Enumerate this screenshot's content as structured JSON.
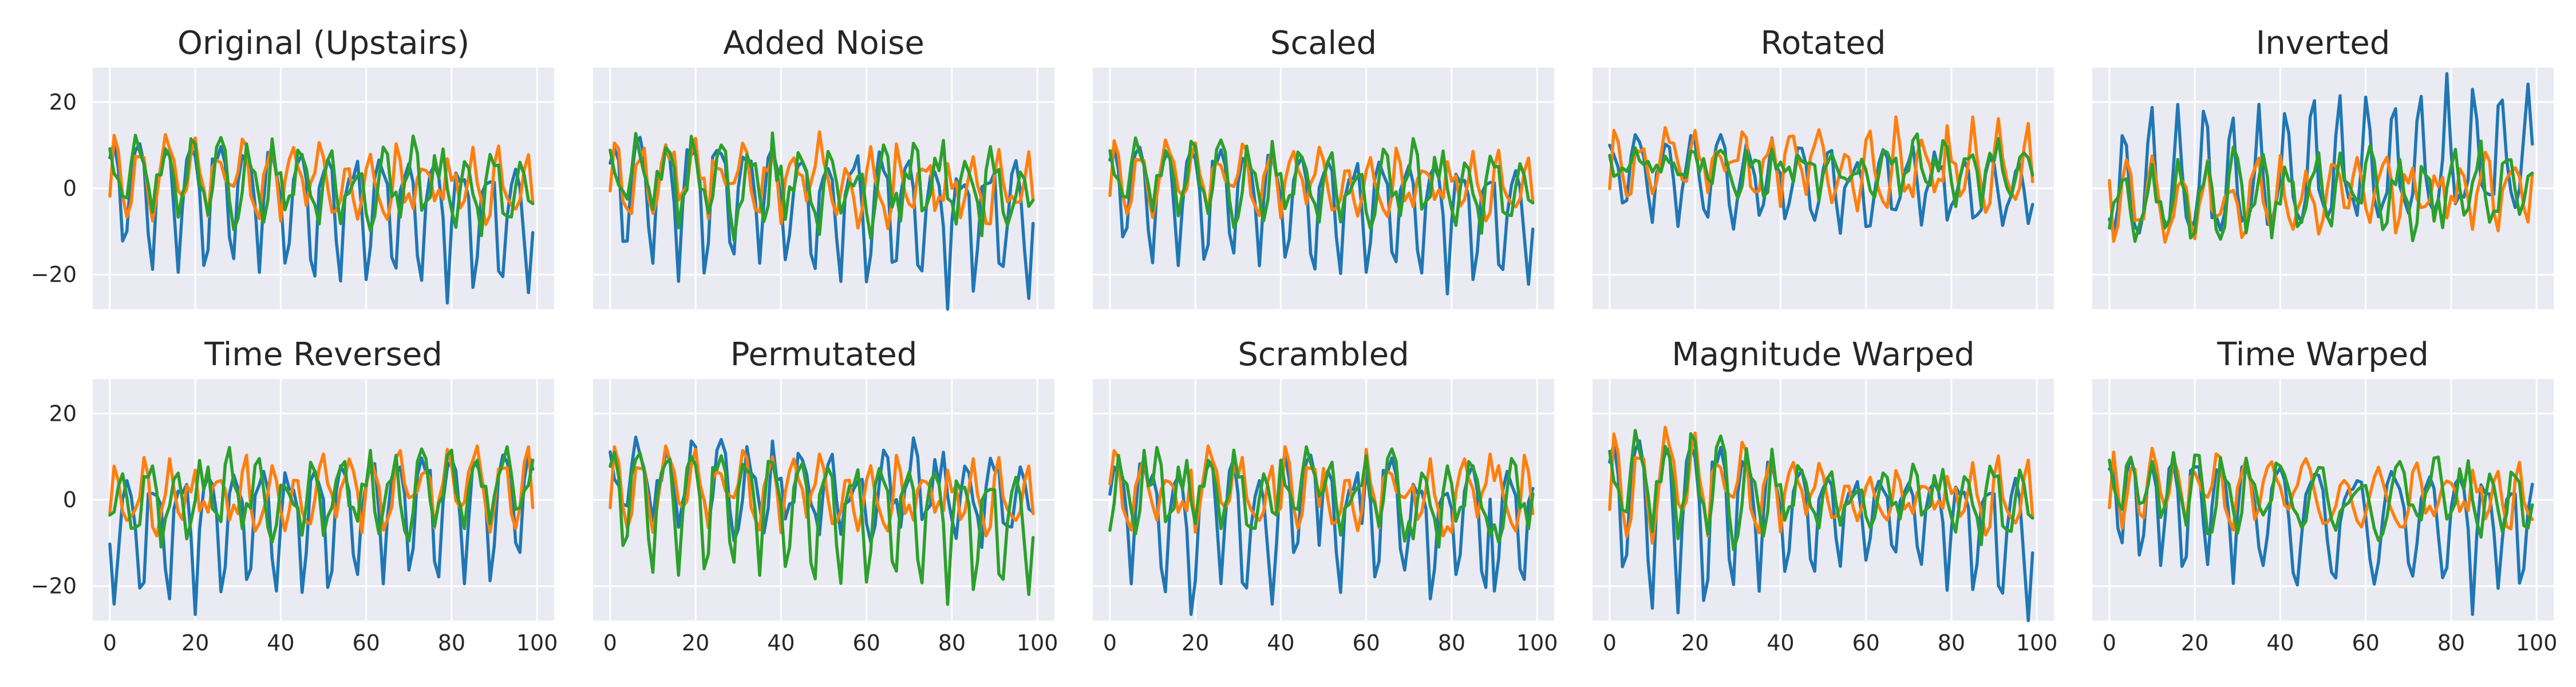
{
  "chart_data": {
    "type": "line",
    "xlim": [
      -4,
      104
    ],
    "ylim": [
      -28,
      28
    ],
    "xticks": [
      0,
      20,
      40,
      60,
      80,
      100
    ],
    "yticks": [
      -20,
      0,
      20
    ],
    "grid": true,
    "series_colors": [
      "#1f77b4",
      "#ff7f0e",
      "#2ca02c"
    ],
    "panels": [
      {
        "title": "Original (Upstairs)",
        "base": "orig",
        "transform": "none",
        "seed": 11
      },
      {
        "title": "Added Noise",
        "base": "orig",
        "transform": "noise",
        "seed": 22
      },
      {
        "title": "Scaled",
        "base": "orig",
        "transform": "scale",
        "seed": 33
      },
      {
        "title": "Rotated",
        "base": "orig",
        "transform": "rotate",
        "seed": 44
      },
      {
        "title": "Inverted",
        "base": "orig",
        "transform": "invert",
        "seed": 55
      },
      {
        "title": "Time Reversed",
        "base": "orig",
        "transform": "reverse",
        "seed": 66
      },
      {
        "title": "Permutated",
        "base": "orig",
        "transform": "permute",
        "seed": 77
      },
      {
        "title": "Scrambled",
        "base": "orig",
        "transform": "scramble",
        "seed": 88
      },
      {
        "title": "Magnitude Warped",
        "base": "orig",
        "transform": "magwarp",
        "seed": 99
      },
      {
        "title": "Time Warped",
        "base": "orig",
        "transform": "timewarp",
        "seed": 111
      }
    ]
  }
}
